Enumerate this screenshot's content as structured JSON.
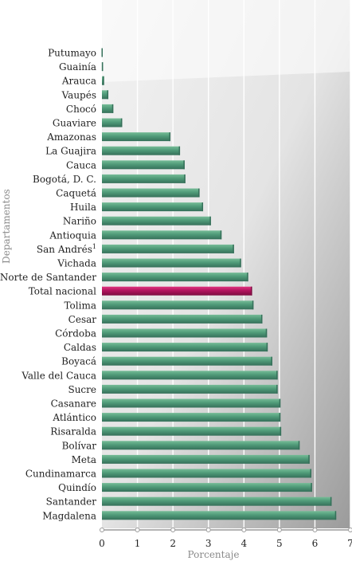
{
  "chart_data": {
    "type": "bar",
    "orientation": "horizontal",
    "xlabel": "Porcentaje",
    "ylabel": "Departamentos",
    "xlim": [
      0,
      7
    ],
    "xticks": [
      "0",
      "1",
      "2",
      "3",
      "4",
      "5",
      "6",
      "7"
    ],
    "categories": [
      "Putumayo",
      "Guainía",
      "Arauca",
      "Vaupés",
      "Chocó",
      "Guaviare",
      "Amazonas",
      "La Guajira",
      "Cauca",
      "Bogotá, D. C.",
      "Caquetá",
      "Huila",
      "Nariño",
      "Antioquia",
      "San Andrés",
      "Vichada",
      "Norte de Santander",
      "Total nacional",
      "Tolima",
      "Cesar",
      "Córdoba",
      "Caldas",
      "Boyacá",
      "Valle del Cauca",
      "Sucre",
      "Casanare",
      "Atlántico",
      "Risaralda",
      "Bolívar",
      "Meta",
      "Cundinamarca",
      "Quindío",
      "Santander",
      "Magdalena"
    ],
    "footnote_marks": {
      "San Andrés": "1"
    },
    "values": [
      0.02,
      0.03,
      0.06,
      0.18,
      0.32,
      0.57,
      1.93,
      2.2,
      2.33,
      2.35,
      2.75,
      2.85,
      3.07,
      3.37,
      3.72,
      3.92,
      4.12,
      4.23,
      4.27,
      4.52,
      4.65,
      4.67,
      4.8,
      4.95,
      4.95,
      5.03,
      5.03,
      5.05,
      5.57,
      5.85,
      5.9,
      5.92,
      6.47,
      6.6
    ],
    "highlight": "Total nacional",
    "colors": {
      "bar": "#4f9a78",
      "bar_light": "#76bc97",
      "bar_dark": "#36705a",
      "highlight": "#b2145e",
      "highlight_light": "#e0347f",
      "highlight_dark": "#7d0c40",
      "background_dark": "#9b9b9b",
      "background_light": "#f2f2f2",
      "gridline": "#ffffff"
    },
    "grid": true
  }
}
